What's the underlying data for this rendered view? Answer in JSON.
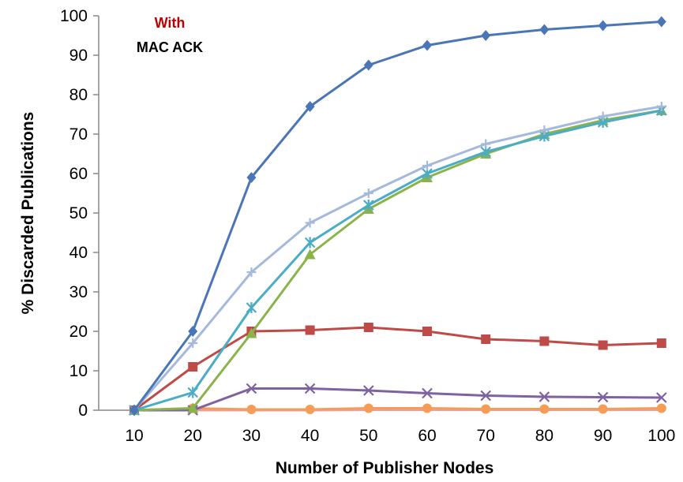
{
  "chart_data": {
    "type": "line",
    "title": "",
    "xlabel": "Number of Publisher Nodes",
    "ylabel": "% Discarded Publications",
    "x": [
      10,
      20,
      30,
      40,
      50,
      60,
      70,
      80,
      90,
      100
    ],
    "xlim": [
      10,
      100
    ],
    "ylim": [
      0,
      100
    ],
    "yticks": [
      0,
      10,
      20,
      30,
      40,
      50,
      60,
      70,
      80,
      90,
      100
    ],
    "grid": false,
    "legend": "none",
    "annotations": [
      {
        "text": "With",
        "color": "#c00000"
      },
      {
        "text": "MAC ACK",
        "color": "#000000"
      }
    ],
    "series": [
      {
        "color": "#4a76b8",
        "marker": "diamond",
        "values": [
          0,
          20,
          59,
          77,
          87.5,
          92.5,
          95,
          96.5,
          97.5,
          98.5
        ]
      },
      {
        "color": "#a5b9db",
        "marker": "plus",
        "values": [
          0,
          17,
          35,
          47.5,
          55,
          62,
          67.5,
          71,
          74.5,
          77
        ]
      },
      {
        "color": "#4aacc5",
        "marker": "star",
        "values": [
          0,
          4.5,
          26,
          42.5,
          52,
          60,
          65.5,
          69.5,
          73,
          76
        ]
      },
      {
        "color": "#8ab34a",
        "marker": "triangle",
        "values": [
          0,
          0.5,
          19.5,
          39.5,
          51,
          59,
          65,
          70,
          73.5,
          76
        ]
      },
      {
        "color": "#be4b48",
        "marker": "square",
        "values": [
          0,
          11,
          20,
          20.3,
          21,
          20,
          18,
          17.5,
          16.5,
          17
        ]
      },
      {
        "color": "#7e62a1",
        "marker": "x",
        "values": [
          0,
          0,
          5.5,
          5.5,
          5,
          4.3,
          3.7,
          3.4,
          3.3,
          3.2
        ]
      },
      {
        "color": "#f59d56",
        "marker": "circle",
        "values": [
          0,
          0.5,
          0.2,
          0.2,
          0.5,
          0.5,
          0.3,
          0.3,
          0.3,
          0.5
        ]
      },
      {
        "color": "#e8a0a0",
        "marker": "none",
        "values": [
          0,
          0,
          0,
          0,
          0.1,
          0.1,
          0.1,
          0.1,
          0.1,
          0.1
        ]
      }
    ]
  }
}
